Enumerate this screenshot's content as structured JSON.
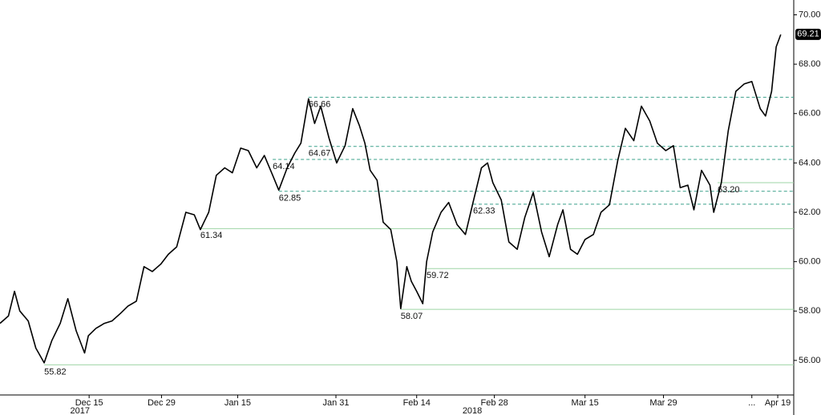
{
  "chart_data": {
    "type": "line",
    "x": [
      0,
      1.1,
      1.9,
      2.6,
      3.7,
      4.7,
      5.8,
      6.8,
      7.9,
      8.9,
      10.0,
      11.1,
      11.6,
      12.6,
      13.7,
      14.7,
      15.8,
      16.8,
      17.9,
      18.9,
      20.0,
      21.1,
      22.1,
      23.2,
      24.4,
      25.5,
      26.3,
      27.4,
      28.4,
      29.5,
      30.5,
      31.6,
      32.6,
      33.7,
      34.7,
      35.8,
      36.6,
      37.7,
      38.7,
      39.5,
      40.5,
      41.3,
      42.1,
      43.2,
      44.2,
      45.3,
      46.3,
      47.2,
      47.9,
      48.6,
      49.5,
      50.3,
      51.3,
      52.1,
      52.6,
      53.4,
      54.0,
      54.7,
      55.5,
      56.0,
      56.8,
      57.9,
      58.9,
      60.0,
      61.1,
      62.1,
      63.2,
      64.0,
      64.7,
      65.8,
      66.8,
      67.9,
      68.9,
      70.0,
      71.1,
      72.1,
      73.2,
      73.9,
      74.9,
      75.8,
      76.8,
      77.9,
      78.9,
      80.0,
      81.1,
      82.1,
      83.2,
      84.2,
      85.3,
      86.3,
      87.4,
      88.4,
      89.3,
      90.3,
      91.1,
      92.1,
      93.2,
      93.7,
      94.7,
      95.6,
      96.6,
      97.7,
      98.7,
      99.8,
      100.5,
      101.3,
      101.9,
      102.5
    ],
    "series": [
      {
        "color": "#000000",
        "values": [
          57.5,
          57.8,
          58.8,
          58.0,
          57.6,
          56.5,
          55.9,
          56.8,
          57.5,
          58.5,
          57.2,
          56.3,
          57.0,
          57.3,
          57.5,
          57.6,
          57.9,
          58.2,
          58.4,
          59.8,
          59.6,
          59.9,
          60.3,
          60.6,
          62.0,
          61.9,
          61.3,
          62.0,
          63.5,
          63.8,
          63.6,
          64.6,
          64.5,
          63.8,
          64.3,
          63.5,
          62.9,
          63.8,
          64.4,
          64.8,
          66.6,
          65.6,
          66.3,
          65.0,
          64.0,
          64.7,
          66.2,
          65.5,
          64.8,
          63.7,
          63.3,
          61.6,
          61.3,
          60.0,
          58.1,
          59.8,
          59.2,
          58.8,
          58.3,
          60.0,
          61.2,
          62.0,
          62.4,
          61.5,
          61.1,
          62.4,
          63.8,
          64.0,
          63.2,
          62.5,
          60.8,
          60.5,
          61.8,
          62.8,
          61.2,
          60.2,
          61.5,
          62.1,
          60.5,
          60.3,
          60.9,
          61.1,
          62.0,
          62.3,
          64.1,
          65.4,
          64.9,
          66.3,
          65.7,
          64.8,
          64.5,
          64.7,
          63.0,
          63.1,
          62.1,
          63.7,
          63.1,
          62.0,
          63.2,
          65.3,
          66.9,
          67.2,
          67.3,
          66.2,
          65.9,
          66.9,
          68.7,
          69.2
        ]
      }
    ],
    "xlim": [
      0,
      104.2
    ],
    "xticks": [
      {
        "value": 11.7,
        "label": "Dec 15"
      },
      {
        "value": 21.2,
        "label": "Dec 29"
      },
      {
        "value": 31.2,
        "label": "Jan 15"
      },
      {
        "value": 44.1,
        "label": "Jan 31"
      },
      {
        "value": 54.7,
        "label": "Feb 14"
      },
      {
        "value": 64.9,
        "label": "Feb 28"
      },
      {
        "value": 76.8,
        "label": "Mar 15"
      },
      {
        "value": 87.1,
        "label": "Mar 29"
      },
      {
        "value": 98.7,
        "label": "..."
      },
      {
        "value": 102.1,
        "label": "Apr 19"
      }
    ],
    "x_group_labels": [
      {
        "value": 10.5,
        "label": "2017"
      },
      {
        "value": 62.0,
        "label": "2018"
      }
    ],
    "ylim": [
      54.6,
      70.6
    ],
    "yticks": [
      {
        "value": 56,
        "label": "56.00"
      },
      {
        "value": 58,
        "label": "58.00"
      },
      {
        "value": 60,
        "label": "60.00"
      },
      {
        "value": 62,
        "label": "62.00"
      },
      {
        "value": 64,
        "label": "64.00"
      },
      {
        "value": 66,
        "label": "66.00"
      },
      {
        "value": 68,
        "label": "68.00"
      },
      {
        "value": 70,
        "label": "70.00"
      }
    ],
    "last_value": {
      "value": 69.21,
      "label": "69.21"
    },
    "levels": {
      "values": [
        55.82,
        58.07,
        59.72,
        61.34,
        62.33,
        62.85,
        63.2,
        64.14,
        64.67,
        66.66
      ],
      "value_labels": [
        "55.82",
        "58.07",
        "59.72",
        "61.34",
        "62.33",
        "62.85",
        "63.20",
        "64.14",
        "64.67",
        "66.66"
      ],
      "x": [
        5.8,
        52.6,
        56.0,
        26.3,
        62.1,
        36.6,
        94.2,
        35.8,
        40.5,
        40.5
      ],
      "styles": [
        "solid",
        "solid",
        "solid",
        "solid",
        "dashed",
        "dashed",
        "solid",
        "dashed",
        "dashed",
        "dashed"
      ],
      "colors": {
        "solid": "#9ed5a5",
        "dashed": "#3aa08a"
      }
    }
  }
}
